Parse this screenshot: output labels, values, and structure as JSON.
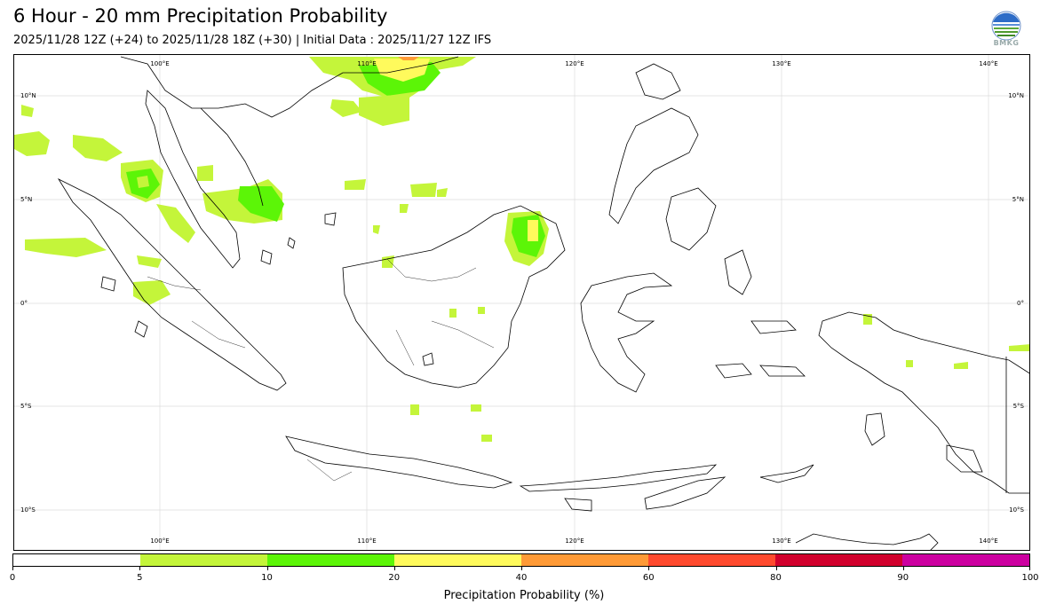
{
  "title": "6 Hour - 20 mm Precipitation Probability",
  "subtitle": "2025/11/28 12Z (+24) to 2025/11/28 18Z (+30) | Initial Data : 2025/11/27 12Z IFS",
  "logo": {
    "icon": "bmkg-logo-icon",
    "text": "BMKG"
  },
  "map": {
    "lon_labels_top": [
      "100°E",
      "110°E",
      "120°E",
      "130°E",
      "140°E"
    ],
    "lon_labels_bottom": [
      "100°E",
      "110°E",
      "120°E",
      "130°E",
      "140°E"
    ],
    "lat_labels_left": [
      "10°N",
      "5°N",
      "0°",
      "5°S",
      "10°S"
    ],
    "lat_labels_right": [
      "10°N",
      "5°N",
      "0°",
      "5°S",
      "10°S"
    ]
  },
  "colorbar": {
    "title": "Precipitation Probability (%)",
    "ticks": [
      "0",
      "5",
      "10",
      "20",
      "40",
      "60",
      "80",
      "90",
      "100"
    ],
    "colors": [
      "#ffffff",
      "#c4f53a",
      "#5cf507",
      "#fffa5c",
      "#ff9a36",
      "#ff4a2e",
      "#d1002c",
      "#cc00a0"
    ]
  }
}
